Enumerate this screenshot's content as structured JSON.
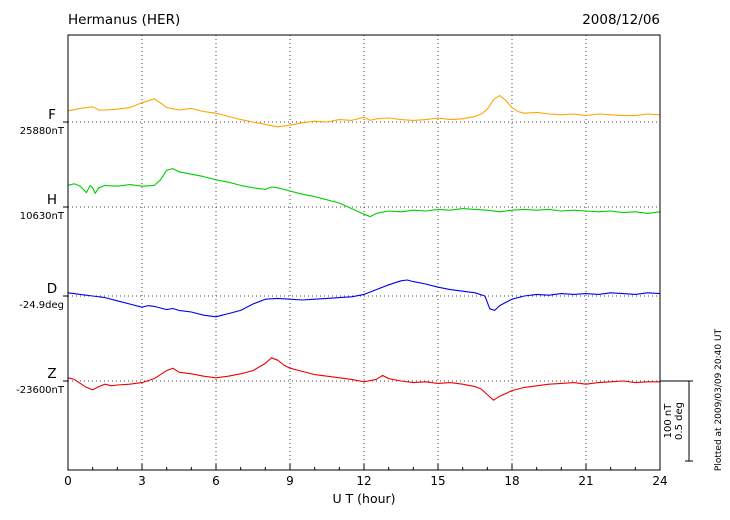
{
  "header": {
    "station": "Hermanus (HER)",
    "date": "2008/12/06"
  },
  "axis": {
    "xlabel": "U T (hour)"
  },
  "scale_bar": {
    "nt_label": "100 nT",
    "deg_label": "0.5 deg"
  },
  "plotted_note": "Plotted at 2009/03/09 20:40 UT",
  "chart_data": {
    "type": "line",
    "title": "Hermanus (HER)",
    "subtitle": "2008/12/06",
    "xlabel": "U T (hour)",
    "xlim": [
      0,
      24
    ],
    "x_major_ticks": [
      0,
      3,
      6,
      9,
      12,
      15,
      18,
      21,
      24
    ],
    "x_minor_step": 1,
    "grid": "dotted vertical lines at major ticks; dotted horizontal baseline per channel",
    "legend_position": "left channel labels",
    "scale": {
      "nT_per_bar": 100,
      "deg_per_bar": 0.5
    },
    "series": [
      {
        "name": "F",
        "baseline_value_label": "25880nT",
        "baseline_value": 25880,
        "unit": "nT",
        "color": "#FFA500",
        "points": [
          [
            0,
            14
          ],
          [
            0.5,
            17
          ],
          [
            1,
            19
          ],
          [
            1.25,
            15
          ],
          [
            1.5,
            15
          ],
          [
            2,
            16
          ],
          [
            2.5,
            18
          ],
          [
            3,
            24
          ],
          [
            3.5,
            29
          ],
          [
            3.75,
            24
          ],
          [
            4,
            18
          ],
          [
            4.5,
            15
          ],
          [
            5,
            17
          ],
          [
            5.5,
            13
          ],
          [
            6,
            11
          ],
          [
            6.5,
            7
          ],
          [
            7,
            3
          ],
          [
            7.5,
            0
          ],
          [
            8,
            -3
          ],
          [
            8.5,
            -6
          ],
          [
            9,
            -4
          ],
          [
            9.5,
            -1
          ],
          [
            10,
            1
          ],
          [
            10.5,
            0
          ],
          [
            11,
            3
          ],
          [
            11.5,
            2
          ],
          [
            12,
            6
          ],
          [
            12.25,
            2
          ],
          [
            12.5,
            4
          ],
          [
            13,
            5
          ],
          [
            13.5,
            3
          ],
          [
            14,
            2
          ],
          [
            14.5,
            3
          ],
          [
            15,
            5
          ],
          [
            15.5,
            3
          ],
          [
            16,
            4
          ],
          [
            16.5,
            7
          ],
          [
            16.75,
            10
          ],
          [
            17,
            16
          ],
          [
            17.25,
            28
          ],
          [
            17.5,
            33
          ],
          [
            17.75,
            27
          ],
          [
            18,
            18
          ],
          [
            18.25,
            13
          ],
          [
            18.5,
            11
          ],
          [
            19,
            12
          ],
          [
            19.5,
            10
          ],
          [
            20,
            9
          ],
          [
            20.5,
            10
          ],
          [
            21,
            8
          ],
          [
            21.5,
            10
          ],
          [
            22,
            9
          ],
          [
            22.5,
            8
          ],
          [
            23,
            8
          ],
          [
            23.5,
            10
          ],
          [
            24,
            9
          ]
        ]
      },
      {
        "name": "H",
        "baseline_value_label": "10630nT",
        "baseline_value": 10630,
        "unit": "nT",
        "color": "#00D000",
        "points": [
          [
            0,
            27
          ],
          [
            0.25,
            29
          ],
          [
            0.5,
            26
          ],
          [
            0.75,
            18
          ],
          [
            0.9,
            27
          ],
          [
            1,
            24
          ],
          [
            1.1,
            17
          ],
          [
            1.25,
            24
          ],
          [
            1.5,
            27
          ],
          [
            2,
            26
          ],
          [
            2.5,
            28
          ],
          [
            3,
            26
          ],
          [
            3.5,
            27
          ],
          [
            3.75,
            34
          ],
          [
            4,
            46
          ],
          [
            4.25,
            48
          ],
          [
            4.5,
            44
          ],
          [
            5,
            41
          ],
          [
            5.5,
            38
          ],
          [
            6,
            34
          ],
          [
            6.5,
            31
          ],
          [
            7,
            27
          ],
          [
            7.5,
            24
          ],
          [
            8,
            22
          ],
          [
            8.25,
            25
          ],
          [
            8.5,
            24
          ],
          [
            9,
            20
          ],
          [
            9.5,
            16
          ],
          [
            10,
            13
          ],
          [
            10.5,
            9
          ],
          [
            11,
            5
          ],
          [
            11.5,
            -2
          ],
          [
            12,
            -9
          ],
          [
            12.25,
            -12
          ],
          [
            12.5,
            -8
          ],
          [
            13,
            -5
          ],
          [
            13.5,
            -6
          ],
          [
            14,
            -4
          ],
          [
            14.5,
            -5
          ],
          [
            15,
            -3
          ],
          [
            15.5,
            -4
          ],
          [
            16,
            -2
          ],
          [
            16.5,
            -3
          ],
          [
            17,
            -4
          ],
          [
            17.5,
            -6
          ],
          [
            18,
            -4
          ],
          [
            18.5,
            -3
          ],
          [
            19,
            -4
          ],
          [
            19.5,
            -3
          ],
          [
            20,
            -5
          ],
          [
            20.5,
            -4
          ],
          [
            21,
            -5
          ],
          [
            21.5,
            -6
          ],
          [
            22,
            -5
          ],
          [
            22.5,
            -7
          ],
          [
            23,
            -6
          ],
          [
            23.5,
            -8
          ],
          [
            24,
            -6
          ]
        ]
      },
      {
        "name": "D",
        "baseline_value_label": "-24.9deg",
        "baseline_value": -24.9,
        "unit": "deg",
        "color": "#0000EE",
        "points": [
          [
            0,
            0.02
          ],
          [
            0.5,
            0.01
          ],
          [
            1,
            0
          ],
          [
            1.5,
            -0.01
          ],
          [
            2,
            -0.03
          ],
          [
            2.5,
            -0.05
          ],
          [
            3,
            -0.07
          ],
          [
            3.25,
            -0.06
          ],
          [
            3.5,
            -0.065
          ],
          [
            4,
            -0.085
          ],
          [
            4.25,
            -0.078
          ],
          [
            4.5,
            -0.09
          ],
          [
            5,
            -0.1
          ],
          [
            5.5,
            -0.12
          ],
          [
            6,
            -0.13
          ],
          [
            6.25,
            -0.12
          ],
          [
            6.5,
            -0.11
          ],
          [
            7,
            -0.09
          ],
          [
            7.5,
            -0.05
          ],
          [
            8,
            -0.02
          ],
          [
            8.5,
            -0.015
          ],
          [
            9,
            -0.02
          ],
          [
            9.5,
            -0.025
          ],
          [
            10,
            -0.02
          ],
          [
            10.5,
            -0.015
          ],
          [
            11,
            -0.01
          ],
          [
            11.5,
            -0.005
          ],
          [
            12,
            0.01
          ],
          [
            12.5,
            0.04
          ],
          [
            13,
            0.07
          ],
          [
            13.5,
            0.095
          ],
          [
            13.75,
            0.1
          ],
          [
            14,
            0.09
          ],
          [
            14.5,
            0.075
          ],
          [
            15,
            0.055
          ],
          [
            15.5,
            0.04
          ],
          [
            16,
            0.03
          ],
          [
            16.5,
            0.02
          ],
          [
            16.9,
            0
          ],
          [
            17.1,
            -0.08
          ],
          [
            17.3,
            -0.09
          ],
          [
            17.5,
            -0.06
          ],
          [
            17.75,
            -0.04
          ],
          [
            18,
            -0.02
          ],
          [
            18.5,
            0
          ],
          [
            19,
            0.01
          ],
          [
            19.5,
            0.005
          ],
          [
            20,
            0.015
          ],
          [
            20.5,
            0.01
          ],
          [
            21,
            0.015
          ],
          [
            21.5,
            0.01
          ],
          [
            22,
            0.02
          ],
          [
            22.5,
            0.015
          ],
          [
            23,
            0.01
          ],
          [
            23.5,
            0.02
          ],
          [
            24,
            0.015
          ]
        ]
      },
      {
        "name": "Z",
        "baseline_value_label": "-23600nT",
        "baseline_value": -23600,
        "unit": "nT",
        "color": "#EE0000",
        "points": [
          [
            0,
            4
          ],
          [
            0.25,
            2
          ],
          [
            0.5,
            -3
          ],
          [
            0.75,
            -8
          ],
          [
            1,
            -11
          ],
          [
            1.25,
            -7
          ],
          [
            1.5,
            -4
          ],
          [
            1.75,
            -6
          ],
          [
            2,
            -5
          ],
          [
            2.5,
            -4
          ],
          [
            3,
            -2
          ],
          [
            3.5,
            3
          ],
          [
            3.75,
            8
          ],
          [
            4,
            13
          ],
          [
            4.25,
            16
          ],
          [
            4.5,
            11
          ],
          [
            5,
            9
          ],
          [
            5.5,
            6
          ],
          [
            6,
            4
          ],
          [
            6.5,
            6
          ],
          [
            7,
            9
          ],
          [
            7.5,
            13
          ],
          [
            8,
            22
          ],
          [
            8.25,
            29
          ],
          [
            8.5,
            26
          ],
          [
            8.75,
            20
          ],
          [
            9,
            16
          ],
          [
            9.5,
            12
          ],
          [
            10,
            8
          ],
          [
            10.5,
            6
          ],
          [
            11,
            4
          ],
          [
            11.5,
            2
          ],
          [
            12,
            -1
          ],
          [
            12.5,
            2
          ],
          [
            12.75,
            7
          ],
          [
            13,
            3
          ],
          [
            13.5,
            0
          ],
          [
            14,
            -2
          ],
          [
            14.5,
            -1
          ],
          [
            15,
            -3
          ],
          [
            15.5,
            -2
          ],
          [
            16,
            -4
          ],
          [
            16.5,
            -7
          ],
          [
            16.75,
            -10
          ],
          [
            17,
            -17
          ],
          [
            17.25,
            -24
          ],
          [
            17.5,
            -19
          ],
          [
            18,
            -12
          ],
          [
            18.5,
            -8
          ],
          [
            19,
            -6
          ],
          [
            19.5,
            -4
          ],
          [
            20,
            -3
          ],
          [
            20.5,
            -2
          ],
          [
            21,
            -4
          ],
          [
            21.5,
            -2
          ],
          [
            22,
            -1
          ],
          [
            22.5,
            0
          ],
          [
            23,
            -2
          ],
          [
            23.5,
            -1
          ],
          [
            24,
            -1
          ]
        ]
      }
    ]
  }
}
